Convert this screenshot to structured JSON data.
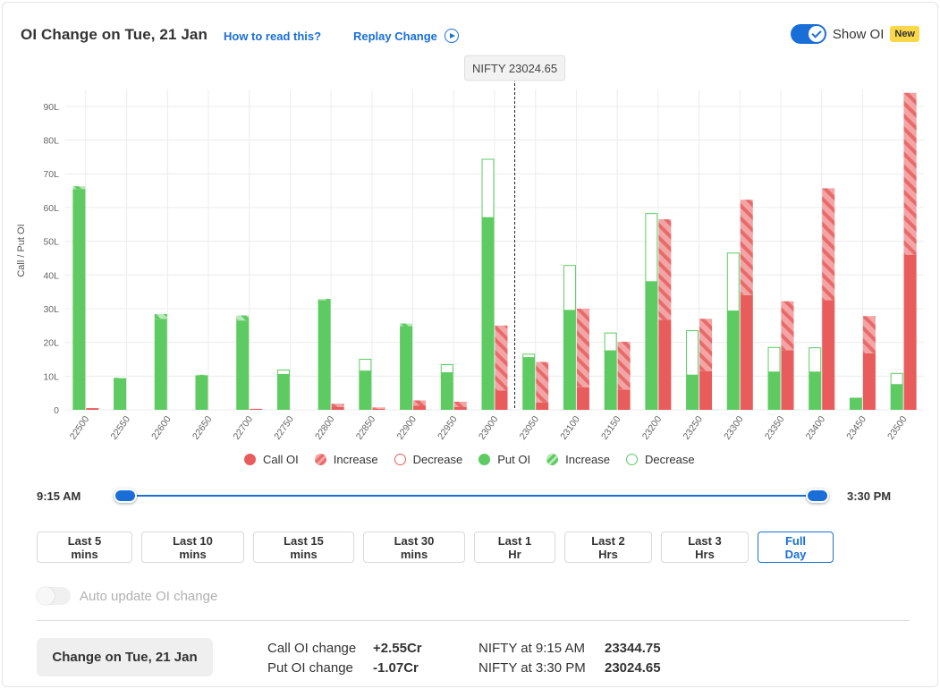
{
  "header": {
    "title": "OI Change on Tue, 21 Jan",
    "how_link": "How to read this?",
    "replay_link": "Replay Change",
    "show_oi_label": "Show OI",
    "new_badge": "New"
  },
  "chart_data": {
    "type": "bar",
    "ylabel": "Call / Put OI",
    "ylim": [
      0,
      95
    ],
    "yticks": [
      0,
      10,
      20,
      30,
      40,
      50,
      60,
      70,
      80,
      90
    ],
    "ytick_labels": [
      "0",
      "10L",
      "20L",
      "30L",
      "40L",
      "50L",
      "60L",
      "70L",
      "80L",
      "90L"
    ],
    "spot_label": "NIFTY 23024.65",
    "spot_value": 23024.65,
    "categories": [
      "22500",
      "22550",
      "22600",
      "22650",
      "22700",
      "22750",
      "22800",
      "22850",
      "22900",
      "22950",
      "23000",
      "23050",
      "23100",
      "23150",
      "23200",
      "23250",
      "23300",
      "23350",
      "23400",
      "23450",
      "23500"
    ],
    "series": [
      {
        "name": "Put OI",
        "values": [
          65.5,
          9.3,
          27,
          10.2,
          26.5,
          10.5,
          32.5,
          11.5,
          24.8,
          11,
          57,
          15.5,
          29.5,
          17.5,
          38,
          10.3,
          29.3,
          11.2,
          11.2,
          3.6,
          7.5
        ]
      },
      {
        "name": "Increase",
        "values": [
          0.8,
          0.2,
          1.4,
          0.2,
          1.5,
          0,
          0.4,
          0,
          0.8,
          0,
          0,
          0,
          0,
          0,
          0,
          0,
          0,
          0,
          0,
          0,
          0
        ]
      },
      {
        "name": "Decrease",
        "values": [
          0,
          0,
          0,
          0,
          0,
          1.3,
          0,
          3.5,
          0,
          2.4,
          17.3,
          1,
          13.3,
          5.3,
          20.2,
          13.2,
          17.2,
          7.3,
          7.2,
          0,
          3.3
        ]
      },
      {
        "name": "Call OI",
        "values": [
          0.5,
          0,
          0,
          0,
          0.3,
          0,
          0.8,
          0.3,
          1.2,
          0.8,
          5.7,
          2.2,
          6.7,
          6,
          26.7,
          11.5,
          34,
          17.7,
          32.5,
          16.8,
          46
        ]
      },
      {
        "name": "Increase",
        "values": [
          0,
          0,
          0,
          0,
          0,
          0,
          1,
          0.4,
          1.6,
          1.6,
          19.3,
          12,
          23.3,
          14.2,
          29.8,
          15.5,
          28.3,
          14.5,
          33.2,
          11,
          48
        ]
      },
      {
        "name": "Decrease",
        "values": [
          0,
          0,
          0,
          0,
          0,
          0,
          0,
          0,
          0,
          0,
          0,
          0,
          0,
          0,
          0,
          0,
          0,
          0,
          0,
          0,
          0
        ]
      }
    ],
    "colors": {
      "call": "#e85c5c",
      "call_hatch": "#f3a5a5",
      "put": "#5dcb62",
      "put_hatch": "#b4e6b4",
      "grid": "#ececec"
    },
    "legend": [
      "Call OI",
      "Increase",
      "Decrease",
      "Put OI",
      "Increase",
      "Decrease"
    ],
    "legend_position": "bottom-center"
  },
  "timeline": {
    "start": "9:15 AM",
    "end": "3:30 PM",
    "range_start_fraction": 0,
    "range_end_fraction": 1
  },
  "filters": [
    {
      "label": "Last 5 mins",
      "active": false
    },
    {
      "label": "Last 10 mins",
      "active": false
    },
    {
      "label": "Last 15 mins",
      "active": false
    },
    {
      "label": "Last 30 mins",
      "active": false
    },
    {
      "label": "Last 1 Hr",
      "active": false
    },
    {
      "label": "Last 2 Hrs",
      "active": false
    },
    {
      "label": "Last 3 Hrs",
      "active": false
    },
    {
      "label": "Full Day",
      "active": true
    }
  ],
  "auto_update": {
    "label": "Auto update OI change",
    "enabled": false
  },
  "summary": {
    "change_button": "Change on Tue, 21 Jan",
    "call_oi_change_label": "Call OI change",
    "call_oi_change_value": "+2.55Cr",
    "put_oi_change_label": "Put OI change",
    "put_oi_change_value": "-1.07Cr",
    "nifty_start_label": "NIFTY at 9:15 AM",
    "nifty_start_value": "23344.75",
    "nifty_end_label": "NIFTY at 3:30 PM",
    "nifty_end_value": "23024.65"
  }
}
